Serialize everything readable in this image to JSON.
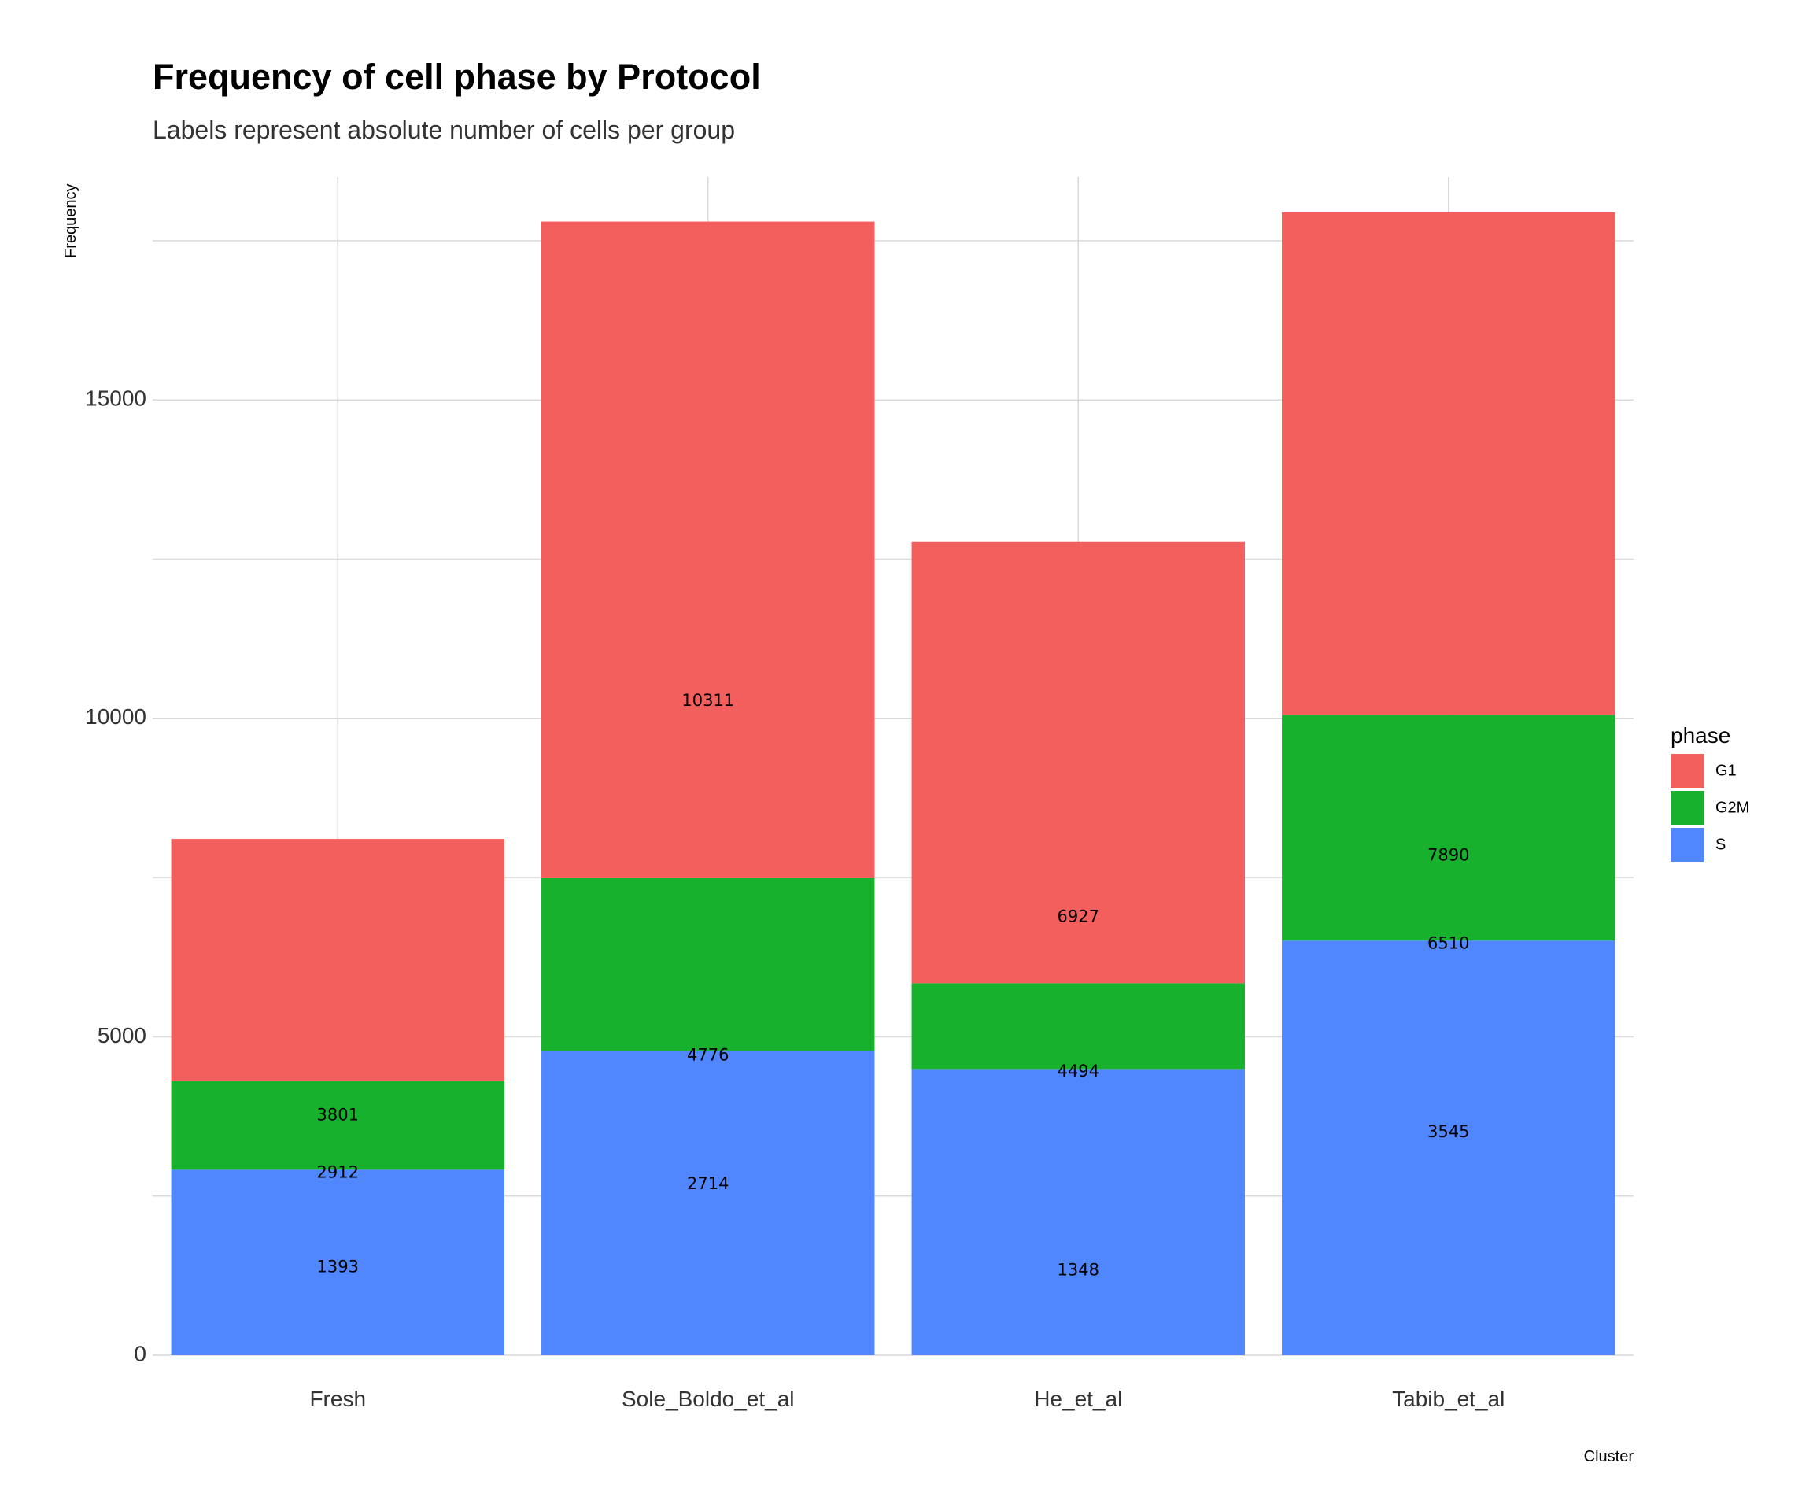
{
  "chart_data": {
    "type": "bar",
    "stacked": true,
    "title": "Frequency of cell phase by Protocol",
    "subtitle": "Labels represent absolute number of cells per group",
    "xlabel": "Cluster",
    "ylabel": "Frequency",
    "categories": [
      "Fresh",
      "Sole_Boldo_et_al",
      "He_et_al",
      "Tabib_et_al"
    ],
    "ylim": [
      0,
      18500
    ],
    "yticks": [
      0,
      5000,
      10000,
      15000
    ],
    "grid": true,
    "legend": {
      "title": "phase",
      "position": "right"
    },
    "series": [
      {
        "name": "S",
        "color": "#5087FF",
        "values": [
          2912,
          4776,
          4494,
          6510
        ]
      },
      {
        "name": "G2M",
        "color": "#17B12E",
        "values": [
          1393,
          2714,
          1348,
          3545
        ]
      },
      {
        "name": "G1",
        "color": "#F35F5C",
        "values": [
          3801,
          10311,
          6927,
          7890
        ]
      }
    ],
    "legend_order": [
      "G1",
      "G2M",
      "S"
    ],
    "annotations": [
      {
        "category": "Fresh",
        "items": [
          {
            "text": "3801",
            "y": 3760
          },
          {
            "text": "2912",
            "y": 2860
          },
          {
            "text": "1393",
            "y": 1380
          }
        ]
      },
      {
        "category": "Sole_Boldo_et_al",
        "items": [
          {
            "text": "10311",
            "y": 10270
          },
          {
            "text": "4776",
            "y": 4700
          },
          {
            "text": "2714",
            "y": 2680
          }
        ]
      },
      {
        "category": "He_et_al",
        "items": [
          {
            "text": "6927",
            "y": 6880
          },
          {
            "text": "4494",
            "y": 4450
          },
          {
            "text": "1348",
            "y": 1330
          }
        ]
      },
      {
        "category": "Tabib_et_al",
        "items": [
          {
            "text": "7890",
            "y": 7840
          },
          {
            "text": "6510",
            "y": 6460
          },
          {
            "text": "3545",
            "y": 3500
          }
        ]
      }
    ]
  }
}
